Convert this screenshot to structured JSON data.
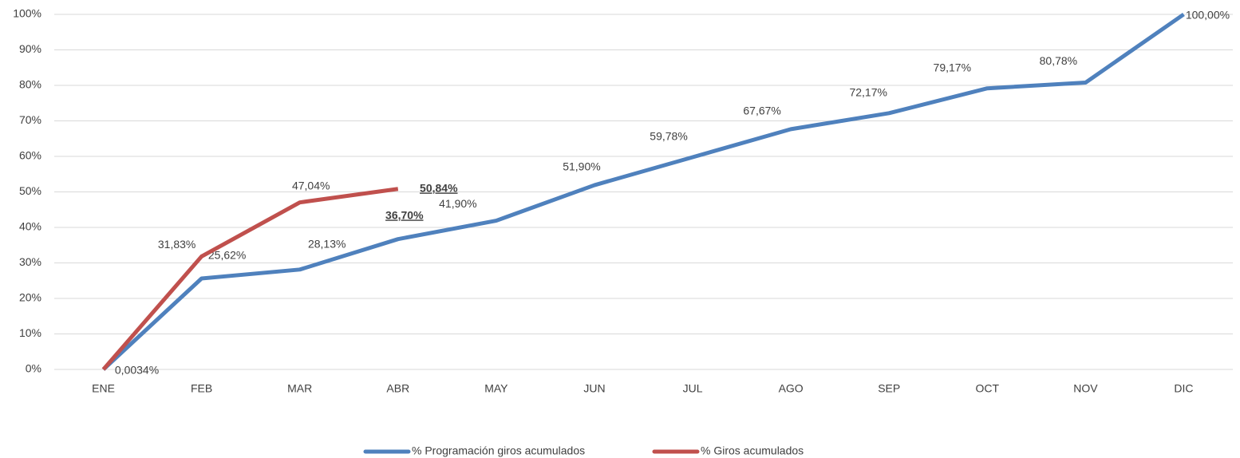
{
  "chart_data": {
    "type": "line",
    "categories": [
      "ENE",
      "FEB",
      "MAR",
      "ABR",
      "MAY",
      "JUN",
      "JUL",
      "AGO",
      "SEP",
      "OCT",
      "NOV",
      "DIC"
    ],
    "series": [
      {
        "name": "% Programación giros acumulados",
        "color": "#4f81bd",
        "values": [
          0.0034,
          25.62,
          28.13,
          36.7,
          41.9,
          51.9,
          59.78,
          67.67,
          72.17,
          79.17,
          80.78,
          100.0
        ],
        "value_labels": [
          "0,0034%",
          "25,62%",
          "28,13%",
          "36,70%",
          "41,90%",
          "51,90%",
          "59,78%",
          "67,67%",
          "72,17%",
          "79,17%",
          "80,78%",
          "100,00%"
        ]
      },
      {
        "name": "% Giros acumulados",
        "color": "#c0504d",
        "values": [
          0,
          31.83,
          47.04,
          50.84,
          null,
          null,
          null,
          null,
          null,
          null,
          null,
          null
        ],
        "value_labels": [
          null,
          "31,83%",
          "47,04%",
          "50,84%",
          null,
          null,
          null,
          null,
          null,
          null,
          null,
          null
        ]
      }
    ],
    "ylim": [
      0,
      100
    ],
    "yticks": [
      {
        "value": 0,
        "label": "0%"
      },
      {
        "value": 10,
        "label": "10%"
      },
      {
        "value": 20,
        "label": "20%"
      },
      {
        "value": 30,
        "label": "30%"
      },
      {
        "value": 40,
        "label": "40%"
      },
      {
        "value": 50,
        "label": "50%"
      },
      {
        "value": 60,
        "label": "60%"
      },
      {
        "value": 70,
        "label": "70%"
      },
      {
        "value": 80,
        "label": "80%"
      },
      {
        "value": 90,
        "label": "90%"
      },
      {
        "value": 100,
        "label": "100%"
      }
    ],
    "grid": true,
    "legend": "bottom"
  }
}
